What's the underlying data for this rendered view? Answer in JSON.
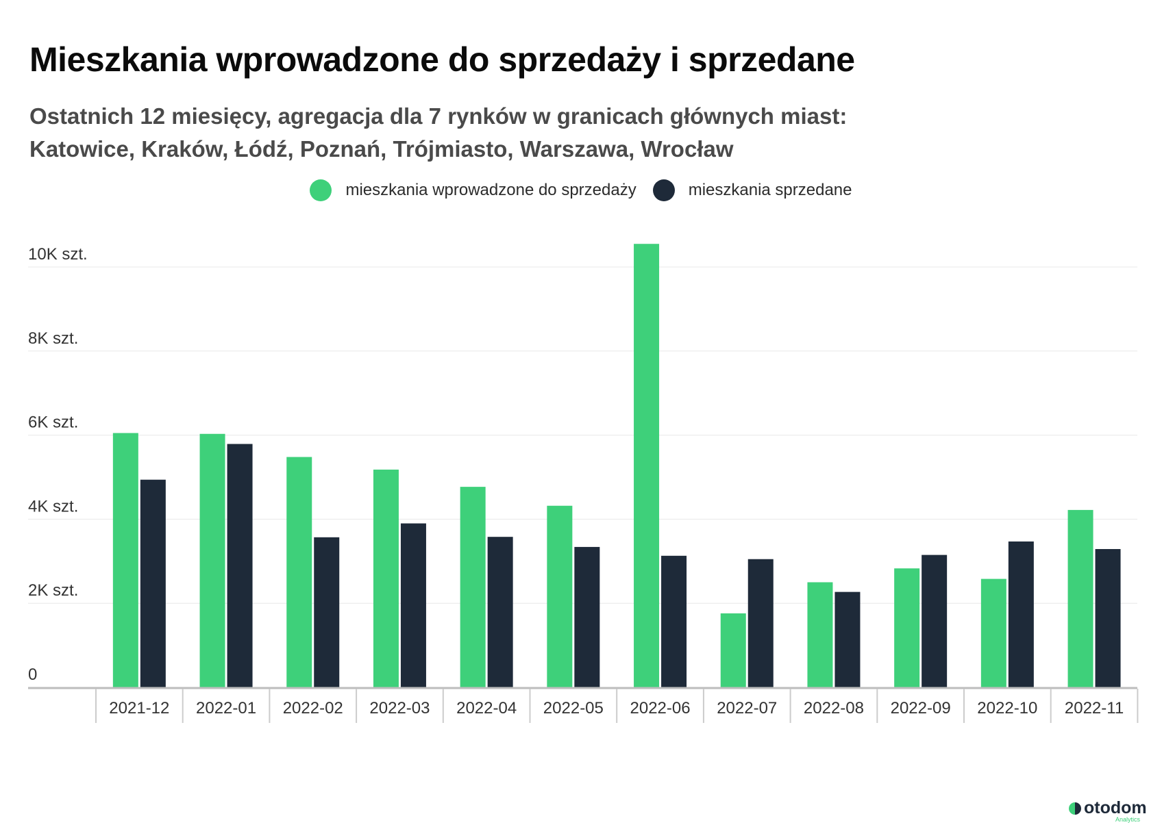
{
  "title": "Mieszkania wprowadzone do sprzedaży i sprzedane",
  "subtitle_line1": "Ostatnich 12 miesięcy, agregacja dla 7 rynków w granicach głównych miast:",
  "subtitle_line2": "Katowice, Kraków, Łódź, Poznań, Trójmiasto, Warszawa, Wrocław",
  "logo": {
    "name": "otodom",
    "sub": "Analytics"
  },
  "colors": {
    "listed": "#3ed07a",
    "sold": "#1e2a39",
    "grid": "#e8e8e8",
    "axis": "#bdbdbd"
  },
  "chart_data": {
    "type": "bar",
    "title": "Mieszkania wprowadzone do sprzedaży i sprzedane",
    "xlabel": "",
    "ylabel": "",
    "ylim": [
      0,
      10500
    ],
    "grid": true,
    "legend_position": "top-center",
    "yticks": [
      0,
      2000,
      4000,
      6000,
      8000,
      10000
    ],
    "ytick_labels": [
      "0",
      "2K szt.",
      "4K szt.",
      "6K szt.",
      "8K szt.",
      "10K szt."
    ],
    "categories": [
      "2021-12",
      "2022-01",
      "2022-02",
      "2022-03",
      "2022-04",
      "2022-05",
      "2022-06",
      "2022-07",
      "2022-08",
      "2022-09",
      "2022-10",
      "2022-11"
    ],
    "series": [
      {
        "name": "mieszkania wprowadzone do sprzedaży",
        "color": "#3ed07a",
        "values": [
          6050,
          6030,
          5480,
          5180,
          4770,
          4320,
          10550,
          1760,
          2500,
          2830,
          2580,
          4220
        ]
      },
      {
        "name": "mieszkania sprzedane",
        "color": "#1e2a39",
        "values": [
          4940,
          5790,
          3570,
          3900,
          3580,
          3340,
          3130,
          3050,
          2270,
          3150,
          3470,
          3290
        ]
      }
    ]
  }
}
